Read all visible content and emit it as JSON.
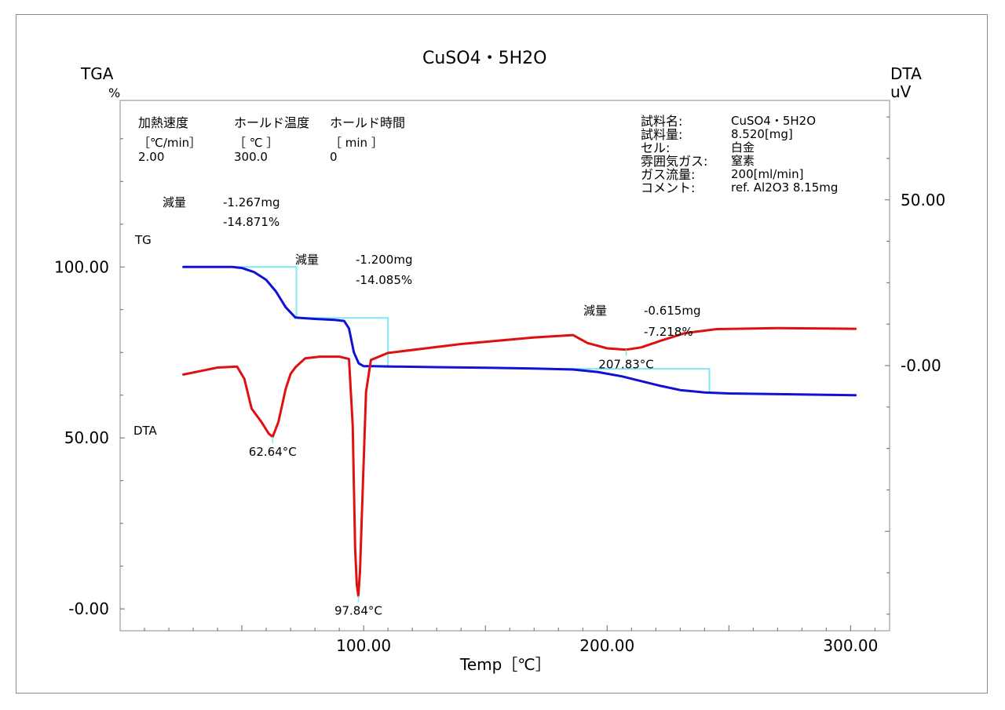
{
  "chart_data": {
    "type": "line",
    "title": "CuSO4・5H2O",
    "xlabel": "Temp［℃］",
    "y_left_label": "TGA",
    "y_left_unit": "%",
    "y_right_label": "DTA",
    "y_right_unit": "uV",
    "xlim": [
      0,
      316
    ],
    "ylim_left": [
      -6.4,
      148.7
    ],
    "ylim_right": [
      -80,
      80
    ],
    "x_ticks": [
      100,
      200,
      300
    ],
    "x_tick_labels": [
      "100.00",
      "200.00",
      "300.00"
    ],
    "y_left_ticks": [
      100,
      50,
      0
    ],
    "y_left_tick_labels": [
      "100.00",
      "50.00",
      "-0.00"
    ],
    "y_right_ticks": [
      50,
      0
    ],
    "y_right_tick_labels": [
      "50.00",
      "-0.00"
    ],
    "colors": {
      "TG": "#1010d8",
      "DTA": "#e01010",
      "step": "#7fe8f0",
      "frame": "#8a8a8a"
    },
    "series": [
      {
        "name": "TG",
        "axis": "left",
        "x": [
          26,
          40,
          46,
          50,
          55,
          60,
          64,
          68,
          72,
          80,
          88,
          92,
          94,
          96,
          98,
          100,
          104,
          110,
          130,
          150,
          170,
          186,
          196,
          206,
          214,
          222,
          230,
          240,
          250,
          270,
          290,
          302
        ],
        "y": [
          100,
          100,
          100,
          99.7,
          98.5,
          96.2,
          92.8,
          88.2,
          85.2,
          84.8,
          84.5,
          84.2,
          82,
          75,
          71.8,
          71,
          71,
          70.9,
          70.7,
          70.5,
          70.3,
          70,
          69.3,
          68,
          66.6,
          65.2,
          64,
          63.3,
          63,
          62.8,
          62.6,
          62.5
        ]
      },
      {
        "name": "DTA",
        "axis": "right",
        "x": [
          26,
          40,
          48,
          51,
          54,
          58,
          61,
          62.64,
          65,
          68,
          70,
          72,
          76,
          82,
          90,
          94,
          95.5,
          96.5,
          97.2,
          97.84,
          98.5,
          99.5,
          101,
          103,
          110,
          140,
          170,
          186,
          192,
          200,
          207.83,
          214,
          222,
          232,
          245,
          270,
          290,
          302
        ],
        "y": [
          -2.7,
          -0.6,
          -0.3,
          -4,
          -13,
          -17,
          -20.5,
          -21.5,
          -17,
          -7,
          -2.5,
          -0.5,
          2.2,
          2.7,
          2.7,
          2,
          -18,
          -55,
          -66,
          -69.5,
          -62,
          -40,
          -8,
          1.7,
          3.8,
          6.5,
          8.5,
          9.2,
          6.8,
          5.2,
          4.8,
          5.5,
          7.5,
          9.8,
          11,
          11.3,
          11.2,
          11.1
        ]
      }
    ],
    "peaks": [
      {
        "x": 62.64,
        "y": -21.5,
        "label": "62.64°C"
      },
      {
        "x": 97.84,
        "y": -69.5,
        "label": "97.84°C"
      },
      {
        "x": 207.83,
        "y": 4.8,
        "label": "207.83°C"
      }
    ],
    "steps": [
      {
        "x1": 43,
        "x2": 72.4,
        "y_from": 100,
        "y_to": 85.1,
        "loss_label": "減量",
        "loss_mg": "-1.267mg",
        "loss_pct": "-14.871%"
      },
      {
        "x1": 72.4,
        "x2": 110,
        "y_from": 85.1,
        "y_to": 71.0,
        "loss_label": "減量",
        "loss_mg": "-1.200mg",
        "loss_pct": "-14.085%"
      },
      {
        "x1": 175,
        "x2": 242,
        "y_from": 70.2,
        "y_to": 63.0,
        "loss_label": "減量",
        "loss_mg": "-0.615mg",
        "loss_pct": "-7.218%"
      }
    ],
    "series_labels": {
      "tg": "TG",
      "dta": "DTA"
    }
  },
  "conditions": {
    "headers": [
      "加熱速度",
      "ホールド温度",
      "ホールド時間"
    ],
    "units": [
      "［℃/min］",
      "［ ℃ ］",
      "［ min ］"
    ],
    "values": [
      "2.00",
      "300.0",
      "0"
    ]
  },
  "sample_info": {
    "labels": [
      "試料名:",
      "試料量:",
      "セル:",
      "雰囲気ガス:",
      "ガス流量:",
      "コメント:"
    ],
    "values": [
      "CuSO4・5H2O",
      "8.520[mg]",
      "白金",
      "窒素",
      "200[ml/min]",
      "ref. Al2O3 8.15mg"
    ]
  }
}
